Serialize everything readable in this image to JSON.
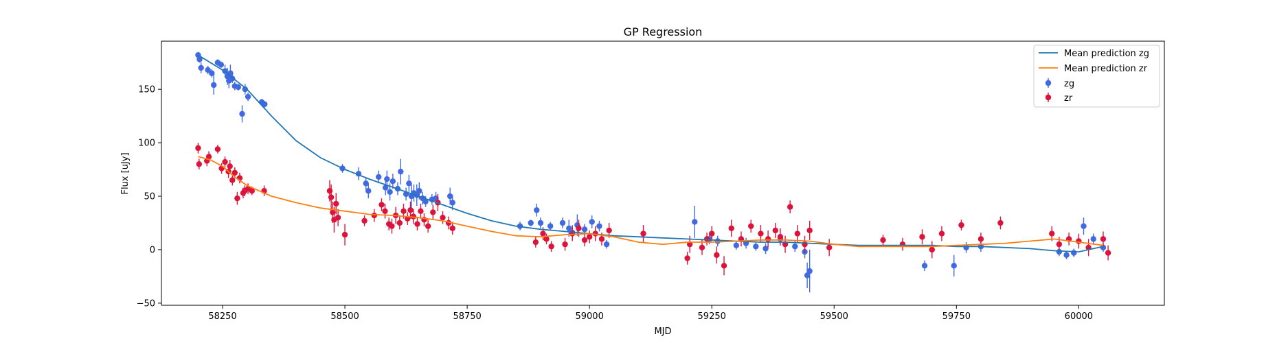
{
  "chart_data": {
    "type": "scatter",
    "title": "GP Regression",
    "xlabel": "MJD",
    "ylabel": "Flux [uJy]",
    "xlim": [
      58125,
      60175
    ],
    "ylim": [
      -52,
      195
    ],
    "xticks": [
      58250,
      58500,
      58750,
      59000,
      59250,
      59500,
      59750,
      60000
    ],
    "yticks": [
      -50,
      0,
      50,
      100,
      150
    ],
    "grid": false,
    "legend": {
      "placement": "top-right",
      "entries": [
        "Mean prediction zg",
        "Mean prediction zr",
        "zg",
        "zr"
      ]
    },
    "series": [
      {
        "name": "zg",
        "kind": "points",
        "color": "#4169e1",
        "x": [
          58200,
          58203,
          58206,
          58220,
          58228,
          58232,
          58240,
          58247,
          58255,
          58260,
          58263,
          58266,
          58270,
          58275,
          58282,
          58290,
          58296,
          58302,
          58330,
          58336,
          58495,
          58528,
          58543,
          58548,
          58569,
          58583,
          58586,
          58592,
          58598,
          58608,
          58614,
          58625,
          58631,
          58636,
          58641,
          58647,
          58652,
          58659,
          58665,
          58678,
          58686,
          58715,
          58720,
          58858,
          58880,
          58892,
          58900,
          58920,
          58945,
          58958,
          58965,
          58975,
          58990,
          59005,
          59020,
          59035,
          59215,
          59245,
          59262,
          59300,
          59320,
          59340,
          59360,
          59390,
          59420,
          59440,
          59445,
          59450,
          59685,
          59700,
          59745,
          59770,
          59800,
          59960,
          59975,
          59990,
          60010,
          60030,
          60050
        ],
        "y": [
          182,
          178,
          170,
          168,
          165,
          154,
          175,
          173,
          167,
          162,
          158,
          165,
          160,
          153,
          152,
          127,
          150,
          143,
          138,
          136,
          76,
          71,
          62,
          55,
          68,
          58,
          66,
          54,
          64,
          57,
          73,
          52,
          62,
          50,
          53,
          51,
          55,
          48,
          45,
          47,
          48,
          50,
          44,
          22,
          25,
          37,
          25,
          22,
          25,
          20,
          16,
          23,
          19,
          26,
          22,
          5,
          26,
          10,
          8,
          4,
          6,
          3,
          1,
          10,
          3,
          -2,
          -24,
          -20,
          -15,
          0,
          -15,
          2,
          3,
          -2,
          -5,
          -3,
          22,
          10,
          2
        ],
        "err": [
          3,
          3,
          5,
          4,
          4,
          9,
          3,
          3,
          6,
          8,
          7,
          8,
          4,
          4,
          3,
          8,
          5,
          4,
          3,
          3,
          4,
          6,
          6,
          7,
          6,
          7,
          8,
          8,
          7,
          6,
          12,
          6,
          8,
          12,
          8,
          10,
          8,
          6,
          5,
          5,
          6,
          8,
          7,
          4,
          3,
          6,
          5,
          4,
          5,
          8,
          7,
          10,
          5,
          6,
          5,
          4,
          15,
          5,
          5,
          4,
          5,
          4,
          5,
          5,
          5,
          6,
          12,
          20,
          5,
          6,
          10,
          5,
          5,
          4,
          4,
          4,
          8,
          5,
          4
        ]
      },
      {
        "name": "zr",
        "kind": "points",
        "color": "#dc143c",
        "x": [
          58200,
          58202,
          58218,
          58222,
          58240,
          58248,
          58255,
          58262,
          58265,
          58270,
          58275,
          58280,
          58285,
          58292,
          58295,
          58302,
          58310,
          58335,
          58469,
          58472,
          58475,
          58478,
          58482,
          58486,
          58500,
          58540,
          58560,
          58575,
          58582,
          58590,
          58596,
          58604,
          58612,
          58620,
          58628,
          58634,
          58640,
          58648,
          58655,
          58662,
          58670,
          58680,
          58690,
          58700,
          58712,
          58720,
          58890,
          58905,
          58912,
          58922,
          58950,
          58965,
          58978,
          58990,
          59000,
          59012,
          59025,
          59040,
          59110,
          59200,
          59205,
          59230,
          59240,
          59250,
          59260,
          59275,
          59290,
          59310,
          59330,
          59350,
          59365,
          59380,
          59390,
          59400,
          59410,
          59425,
          59440,
          59450,
          59490,
          59600,
          59640,
          59680,
          59700,
          59720,
          59760,
          59800,
          59840,
          59945,
          59960,
          59980,
          60000,
          60020,
          60050,
          60060
        ],
        "y": [
          95,
          80,
          83,
          87,
          94,
          76,
          82,
          73,
          78,
          65,
          72,
          48,
          67,
          53,
          55,
          57,
          55,
          55,
          55,
          49,
          35,
          28,
          43,
          30,
          14,
          27,
          32,
          42,
          36,
          24,
          22,
          32,
          25,
          36,
          29,
          37,
          31,
          24,
          36,
          28,
          22,
          35,
          44,
          30,
          25,
          20,
          7,
          15,
          10,
          3,
          5,
          15,
          20,
          9,
          12,
          15,
          10,
          18,
          15,
          -8,
          5,
          2,
          10,
          15,
          -5,
          -15,
          20,
          10,
          22,
          15,
          10,
          18,
          12,
          5,
          40,
          15,
          5,
          18,
          2,
          9,
          5,
          12,
          0,
          15,
          23,
          10,
          25,
          15,
          5,
          10,
          8,
          2,
          10,
          -3
        ],
        "err": [
          5,
          5,
          5,
          5,
          4,
          5,
          5,
          6,
          6,
          5,
          5,
          6,
          5,
          5,
          5,
          5,
          4,
          5,
          10,
          12,
          10,
          12,
          10,
          8,
          10,
          5,
          6,
          6,
          7,
          6,
          7,
          8,
          6,
          7,
          6,
          8,
          7,
          6,
          7,
          6,
          6,
          7,
          8,
          6,
          6,
          6,
          5,
          6,
          5,
          5,
          6,
          7,
          8,
          6,
          6,
          7,
          6,
          7,
          8,
          6,
          8,
          7,
          6,
          7,
          8,
          9,
          8,
          7,
          6,
          8,
          8,
          7,
          8,
          8,
          6,
          8,
          8,
          9,
          8,
          5,
          6,
          7,
          8,
          7,
          5,
          6,
          6,
          7,
          7,
          6,
          7,
          8,
          7,
          7
        ]
      },
      {
        "name": "Mean prediction zg",
        "kind": "line",
        "color": "#1f77b4",
        "x": [
          58200,
          58250,
          58300,
          58350,
          58400,
          58450,
          58500,
          58550,
          58600,
          58650,
          58700,
          58750,
          58800,
          58850,
          58900,
          58950,
          59000,
          59050,
          59100,
          59150,
          59200,
          59250,
          59300,
          59350,
          59400,
          59450,
          59500,
          59550,
          59600,
          59650,
          59700,
          59750,
          59800,
          59850,
          59900,
          59950,
          60000,
          60050
        ],
        "y": [
          182,
          168,
          150,
          125,
          102,
          86,
          75,
          66,
          58,
          50,
          42,
          34,
          27,
          22,
          19,
          17,
          15,
          13,
          12,
          11,
          10,
          9,
          8,
          7,
          7,
          6,
          5,
          4,
          4,
          4,
          4,
          3,
          3,
          2,
          1,
          -1,
          -2,
          3
        ]
      },
      {
        "name": "Mean prediction zr",
        "kind": "line",
        "color": "#ff7f0e",
        "x": [
          58200,
          58225,
          58250,
          58275,
          58300,
          58350,
          58400,
          58450,
          58500,
          58550,
          58600,
          58650,
          58700,
          58750,
          58800,
          58850,
          58900,
          58950,
          59000,
          59050,
          59100,
          59150,
          59200,
          59250,
          59300,
          59350,
          59400,
          59450,
          59500,
          59550,
          59600,
          59650,
          59700,
          59750,
          59800,
          59850,
          59900,
          59950,
          60000,
          60050
        ],
        "y": [
          87,
          84,
          78,
          68,
          60,
          50,
          44,
          39,
          36,
          33,
          32,
          30,
          27,
          22,
          17,
          13,
          12,
          14,
          15,
          12,
          7,
          5,
          7,
          7,
          8,
          9,
          9,
          8,
          5,
          3,
          3,
          3,
          3,
          4,
          5,
          6,
          8,
          10,
          7,
          4
        ]
      }
    ]
  }
}
